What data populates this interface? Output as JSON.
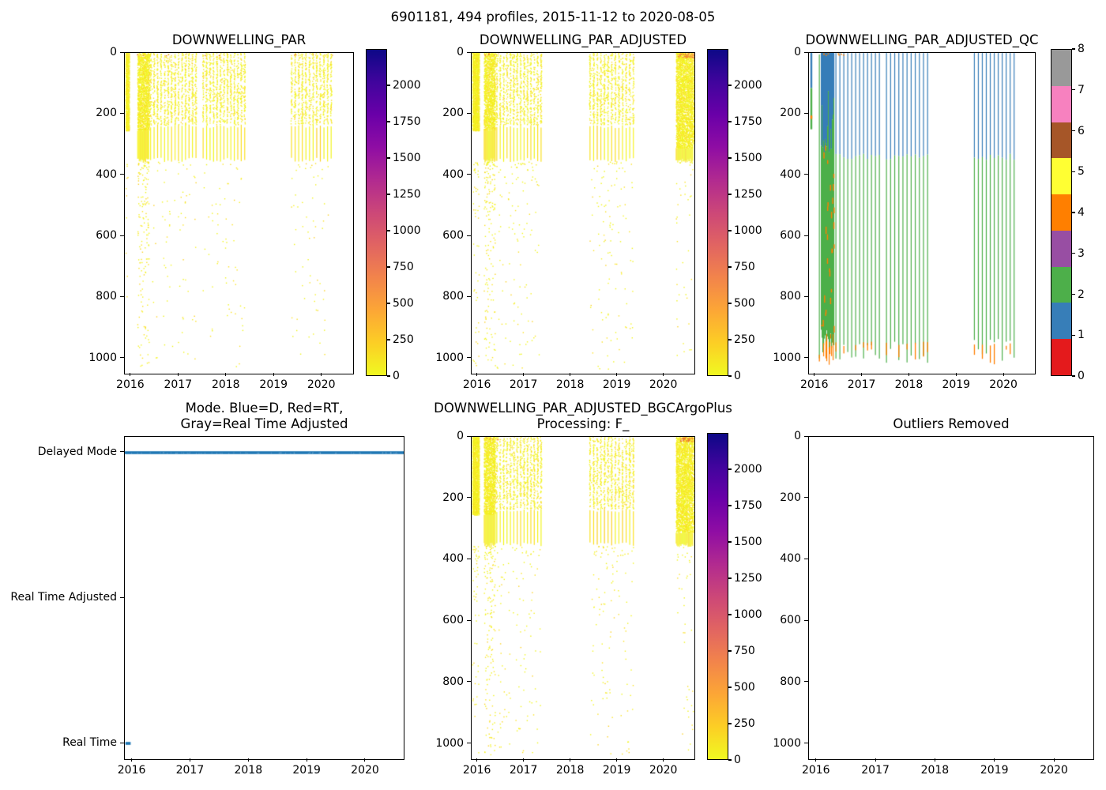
{
  "figure": {
    "suptitle": "6901181, 494 profiles, 2015-11-12 to 2020-08-05",
    "n_profiles": 494
  },
  "colors": {
    "figure_bg": "#ffffff",
    "axes_edge": "#000000",
    "text": "#000000",
    "plasma_r_bottom_to_top": [
      "#f0f921",
      "#fcce25",
      "#fca636",
      "#f2844b",
      "#e16462",
      "#cc4778",
      "#b12a90",
      "#8f0da4",
      "#6a00a8",
      "#41049d",
      "#0d0887"
    ],
    "scatter_yellows": [
      "#f2f51f",
      "#eef41c",
      "#f6f227",
      "#fbe124"
    ],
    "scatter_oranges": [
      "#fca636",
      "#f58a46",
      "#e8692d"
    ],
    "qc_palette_0_to_8": [
      "#e41a1c",
      "#377eb8",
      "#4daf4a",
      "#984ea3",
      "#ff7f00",
      "#ffff33",
      "#a65628",
      "#f781bf",
      "#999999"
    ],
    "qc_blue": "#377eb8",
    "qc_green": "#4daf4a",
    "qc_orange": "#ff7f00",
    "mode_blue": "#1f77b4"
  },
  "colorbar_par": {
    "tick_values": [
      0,
      250,
      500,
      750,
      1000,
      1250,
      1500,
      1750,
      2000
    ],
    "vmin": 0,
    "vmax": 2250,
    "colormap": "plasma_r"
  },
  "colorbar_qc": {
    "tick_values": [
      0,
      1,
      2,
      3,
      4,
      5,
      6,
      7,
      8
    ],
    "n_segments": 9
  },
  "chart_data": [
    {
      "type": "scatter",
      "title": "DOWNWELLING_PAR",
      "x_range": [
        2015.87,
        2020.65
      ],
      "x_ticks": [
        2016,
        2017,
        2018,
        2019,
        2020
      ],
      "y_range": [
        0,
        1050
      ],
      "y_ticks": [
        0,
        200,
        400,
        600,
        800,
        1000
      ],
      "y_inverted": true,
      "colorbar": "par",
      "value_span_note": "most points 0-250 (yellow), rare surface points up to ~600 (orange)",
      "events": [
        {
          "kind": "band",
          "t0": 2015.88,
          "t1": 2015.95,
          "d0": 0,
          "d1": 255,
          "deep_n": 10
        },
        {
          "kind": "block",
          "t0": 2016.13,
          "t1": 2016.37,
          "speckle_d1": 250,
          "solid_d0": 250,
          "solid_d1": 352,
          "deep_n": 150
        },
        {
          "kind": "stripes",
          "t0": 2016.4,
          "t1": 2017.35,
          "n": 14,
          "dot_d1": 235,
          "solid_d0": 240,
          "solid_d1": 350,
          "deep_n": 70
        },
        {
          "kind": "stripes",
          "t0": 2017.5,
          "t1": 2018.37,
          "n": 13,
          "dot_d1": 235,
          "solid_d0": 240,
          "solid_d1": 350,
          "deep_n": 60
        },
        {
          "kind": "stripes",
          "t0": 2019.35,
          "t1": 2020.18,
          "n": 12,
          "dot_d1": 235,
          "solid_d0": 240,
          "solid_d1": 350,
          "deep_n": 60
        }
      ],
      "surface_markers": [
        {
          "t0": 2016.1,
          "t1": 2018.4,
          "n": 7,
          "d1": 8
        },
        {
          "t0": 2019.4,
          "t1": 2020.55,
          "n": 5,
          "d1": 10
        }
      ]
    },
    {
      "type": "scatter",
      "title": "DOWNWELLING_PAR_ADJUSTED",
      "x_range": [
        2015.87,
        2020.65
      ],
      "x_ticks": [
        2016,
        2017,
        2018,
        2019,
        2020
      ],
      "y_range": [
        0,
        1050
      ],
      "y_ticks": [
        0,
        200,
        400,
        600,
        800,
        1000
      ],
      "y_inverted": true,
      "colorbar": "par",
      "events": [
        {
          "kind": "band",
          "t0": 2015.88,
          "t1": 2016.02,
          "d0": 0,
          "d1": 255,
          "deep_n": 50
        },
        {
          "kind": "block",
          "t0": 2016.13,
          "t1": 2016.37,
          "speckle_d1": 250,
          "solid_d0": 250,
          "solid_d1": 352,
          "deep_n": 150
        },
        {
          "kind": "stripes",
          "t0": 2016.4,
          "t1": 2017.35,
          "n": 14,
          "dot_d1": 235,
          "solid_d0": 240,
          "solid_d1": 350,
          "deep_n": 110
        },
        {
          "kind": "stripes",
          "t0": 2018.4,
          "t1": 2019.33,
          "n": 13,
          "dot_d1": 235,
          "solid_d0": 240,
          "solid_d1": 350,
          "deep_n": 110
        },
        {
          "kind": "block",
          "t0": 2020.25,
          "t1": 2020.62,
          "speckle_d1": 310,
          "solid_d0": 310,
          "solid_d1": 352,
          "deep_n": 40
        }
      ],
      "surface_markers": [
        {
          "t0": 2016.12,
          "t1": 2016.45,
          "n": 6,
          "d1": 8
        },
        {
          "t0": 2020.3,
          "t1": 2020.63,
          "n": 45,
          "d1": 14
        }
      ]
    },
    {
      "type": "scatter_qc",
      "title": "DOWNWELLING_PAR_ADJUSTED_QC",
      "x_range": [
        2015.87,
        2020.65
      ],
      "x_ticks": [
        2016,
        2017,
        2018,
        2019,
        2020
      ],
      "y_range": [
        0,
        1050
      ],
      "y_ticks": [
        0,
        200,
        400,
        600,
        800,
        1000
      ],
      "y_inverted": true,
      "colorbar": "qc",
      "qc_values_present": [
        1,
        2,
        4
      ],
      "events": [
        {
          "kind": "qc_profile",
          "t": 2015.9,
          "blue_d1": 115,
          "green_d1": 250,
          "orange_d": [
            205,
            216
          ]
        },
        {
          "kind": "qc_stripe_green",
          "t": 2016.08,
          "d0": 5,
          "d1": 1000,
          "orange_tip": true
        },
        {
          "kind": "qc_block",
          "t0": 2016.12,
          "t1": 2016.4,
          "blue_d1": [
            120,
            340
          ],
          "green_d1": [
            900,
            980
          ],
          "orange_blob": [
            920,
            1020
          ],
          "orange_speck_n": 28
        },
        {
          "kind": "qc_stripes",
          "t0": 2016.43,
          "t1": 2017.35,
          "n": 12,
          "blue_d1": 340,
          "green_d1": [
            930,
            1015
          ],
          "orange_tip_prob": 0.65
        },
        {
          "kind": "qc_stripes",
          "t0": 2017.5,
          "t1": 2018.37,
          "n": 11,
          "blue_d1": 340,
          "green_d1": [
            930,
            1015
          ],
          "orange_tip_prob": 0.65
        },
        {
          "kind": "qc_stripes",
          "t0": 2019.36,
          "t1": 2020.2,
          "n": 11,
          "blue_d1": 340,
          "green_d1": [
            930,
            1015
          ],
          "orange_tip_prob": 0.65
        }
      ],
      "surface_markers": [
        {
          "t0": 2016.05,
          "t1": 2016.6,
          "n": 8,
          "d1": 6
        }
      ]
    },
    {
      "type": "event_scatter",
      "title": "Mode. Blue=D, Red=RT,",
      "title_line2": "Gray=Real Time Adjusted",
      "x_range": [
        2015.87,
        2020.65
      ],
      "x_ticks": [
        2016,
        2017,
        2018,
        2019,
        2020
      ],
      "categories_bottom_to_top": [
        "Real Time",
        "Real Time Adjusted",
        "Delayed Mode"
      ],
      "series": [
        {
          "mode": "Delayed Mode",
          "t0": 2015.87,
          "t1": 2020.65
        },
        {
          "mode": "Real Time",
          "t0": 2015.88,
          "t1": 2015.97
        }
      ]
    },
    {
      "type": "scatter",
      "title": "DOWNWELLING_PAR_ADJUSTED_BGCArgoPlus",
      "title_line2": "Processing: F_",
      "x_range": [
        2015.87,
        2020.65
      ],
      "x_ticks": [
        2016,
        2017,
        2018,
        2019,
        2020
      ],
      "y_range": [
        0,
        1050
      ],
      "y_ticks": [
        0,
        200,
        400,
        600,
        800,
        1000
      ],
      "y_inverted": true,
      "colorbar": "par",
      "events": [
        {
          "kind": "band",
          "t0": 2015.88,
          "t1": 2016.02,
          "d0": 0,
          "d1": 255,
          "deep_n": 50
        },
        {
          "kind": "block",
          "t0": 2016.13,
          "t1": 2016.37,
          "speckle_d1": 250,
          "solid_d0": 250,
          "solid_d1": 352,
          "deep_n": 150
        },
        {
          "kind": "stripes",
          "t0": 2016.4,
          "t1": 2017.35,
          "n": 14,
          "dot_d1": 235,
          "solid_d0": 240,
          "solid_d1": 350,
          "deep_n": 110
        },
        {
          "kind": "stripes",
          "t0": 2018.4,
          "t1": 2019.33,
          "n": 13,
          "dot_d1": 235,
          "solid_d0": 240,
          "solid_d1": 350,
          "deep_n": 110
        },
        {
          "kind": "block",
          "t0": 2020.25,
          "t1": 2020.62,
          "speckle_d1": 310,
          "solid_d0": 310,
          "solid_d1": 352,
          "deep_n": 40
        }
      ],
      "surface_markers": [
        {
          "t0": 2016.12,
          "t1": 2016.45,
          "n": 6,
          "d1": 8
        },
        {
          "t0": 2020.3,
          "t1": 2020.63,
          "n": 45,
          "d1": 14
        }
      ]
    },
    {
      "type": "scatter",
      "title": "Outliers Removed",
      "x_range": [
        2015.87,
        2020.65
      ],
      "x_ticks": [
        2016,
        2017,
        2018,
        2019,
        2020
      ],
      "y_range": [
        0,
        1050
      ],
      "y_ticks": [
        0,
        200,
        400,
        600,
        800,
        1000
      ],
      "y_inverted": true,
      "events": []
    }
  ]
}
